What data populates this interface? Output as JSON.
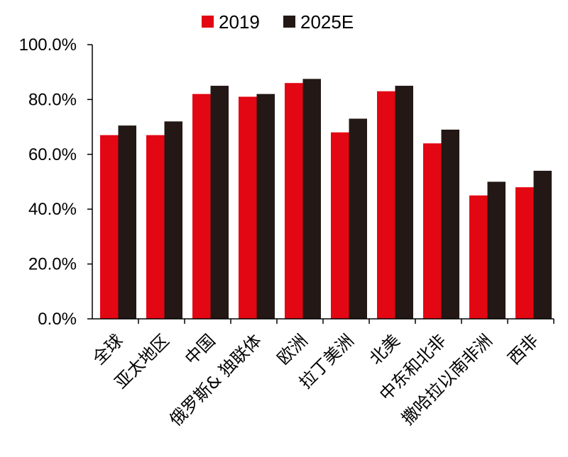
{
  "chart_data": {
    "type": "bar",
    "categories": [
      "全球",
      "亚太地区",
      "中国",
      "俄罗斯& 独联体",
      "欧洲",
      "拉丁美洲",
      "北美",
      "中东和北非",
      "撒哈拉以南非洲",
      "西非"
    ],
    "series": [
      {
        "name": "2019",
        "color": "#e30613",
        "values": [
          67,
          67,
          82,
          81,
          86,
          68,
          83,
          64,
          45,
          48
        ]
      },
      {
        "name": "2025E",
        "color": "#231815",
        "values": [
          70.5,
          72,
          85,
          82,
          87.5,
          73,
          85,
          69,
          50,
          54
        ]
      }
    ],
    "yticks": [
      "0.0%",
      "20.0%",
      "40.0%",
      "60.0%",
      "80.0%",
      "100.0%"
    ],
    "ylim": [
      0,
      100
    ],
    "grid": false,
    "legend_position": "top-center"
  }
}
